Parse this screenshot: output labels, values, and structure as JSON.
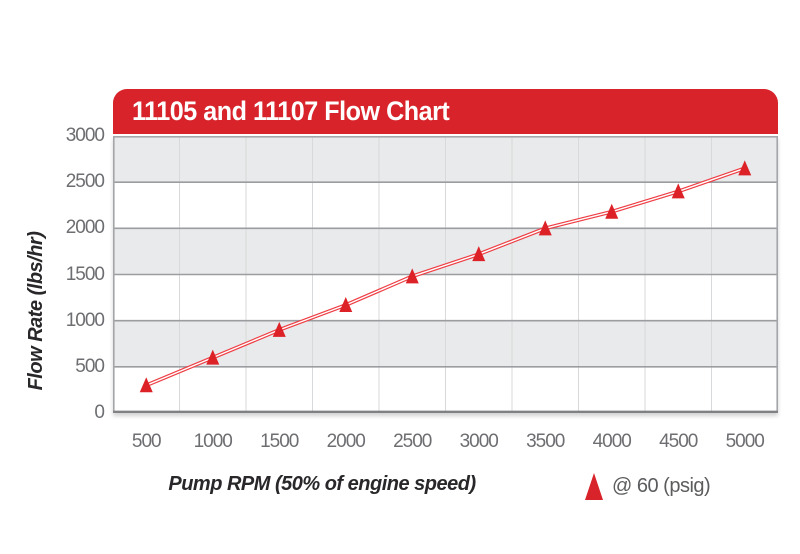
{
  "chart_data": {
    "type": "line",
    "title": "11105 and 11107 Flow Chart",
    "xlabel": "Pump RPM (50% of engine speed)",
    "ylabel": "Flow Rate (lbs/hr)",
    "x": [
      500,
      1000,
      1500,
      2000,
      2500,
      3000,
      3500,
      4000,
      4500,
      5000
    ],
    "series": [
      {
        "name": "@ 60 (psig)",
        "marker": "triangle",
        "values": [
          300,
          600,
          900,
          1170,
          1480,
          1720,
          2000,
          2180,
          2400,
          2650
        ]
      }
    ],
    "ylim": [
      0,
      3000
    ],
    "ytick_step": 500,
    "xlim_categories": true,
    "grid": "horizontal-bands-and-vertical-lines",
    "legend_position": "bottom-right"
  },
  "colors": {
    "header_red": "#d8232a",
    "marker_red": "#dc2127",
    "line_red": "#ee3e44",
    "line_core": "#ffffff",
    "band_gray": "#e9eaeb",
    "band_white": "#ffffff",
    "hgrid": "#9b9da0",
    "vgrid": "#d8d9da",
    "plot_border": "#a4a6a9",
    "plot_border_bottom": "#808184",
    "tick_text": "#6d6e71",
    "axis_title_text": "#29272a",
    "legend_text": "#5b5c5e",
    "title_text": "#ffffff"
  }
}
